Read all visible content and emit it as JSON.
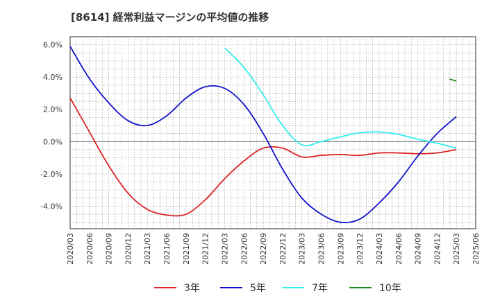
{
  "chart_data": {
    "type": "line",
    "title": "[8614]  経常利益マージンの平均値の推移",
    "x": [
      "2020/03",
      "2020/06",
      "2020/09",
      "2020/12",
      "2021/03",
      "2021/06",
      "2021/09",
      "2021/12",
      "2022/03",
      "2022/06",
      "2022/09",
      "2022/12",
      "2023/03",
      "2023/06",
      "2023/09",
      "2023/12",
      "2024/03",
      "2024/06",
      "2024/09",
      "2024/12",
      "2025/03",
      "2025/06"
    ],
    "y_ticks": [
      6.0,
      4.0,
      2.0,
      0.0,
      -2.0,
      -4.0
    ],
    "y_tick_labels": [
      "6.0%",
      "4.0%",
      "2.0%",
      "0.0%",
      "-2.0%",
      "-4.0%"
    ],
    "ylim": [
      -5.4,
      6.5
    ],
    "grid": true,
    "legend_position": "bottom",
    "series": [
      {
        "name": "3年",
        "color": "#dd2222",
        "values": [
          2.7,
          0.6,
          -1.5,
          -3.2,
          -4.2,
          -4.55,
          -4.5,
          -3.6,
          -2.3,
          -1.2,
          -0.4,
          -0.4,
          -0.95,
          -0.85,
          -0.8,
          -0.85,
          -0.7,
          -0.7,
          -0.75,
          -0.7,
          -0.5,
          null
        ]
      },
      {
        "name": "5年",
        "color": "#1111cc",
        "values": [
          5.9,
          3.9,
          2.4,
          1.3,
          1.0,
          1.6,
          2.7,
          3.4,
          3.3,
          2.3,
          0.5,
          -1.7,
          -3.5,
          -4.5,
          -5.0,
          -4.8,
          -3.8,
          -2.5,
          -0.9,
          0.5,
          1.55,
          null
        ]
      },
      {
        "name": "7年",
        "color": "#33eeee",
        "values": [
          null,
          null,
          null,
          null,
          null,
          null,
          null,
          null,
          5.8,
          4.6,
          2.9,
          1.0,
          -0.2,
          0.0,
          0.3,
          0.55,
          0.6,
          0.45,
          0.15,
          -0.1,
          -0.4,
          null
        ]
      },
      {
        "name": "10年",
        "color": "#228822",
        "values": [
          null,
          null,
          null,
          null,
          null,
          null,
          null,
          null,
          null,
          null,
          null,
          null,
          null,
          null,
          null,
          null,
          null,
          null,
          null,
          null,
          3.75,
          null
        ]
      }
    ]
  }
}
